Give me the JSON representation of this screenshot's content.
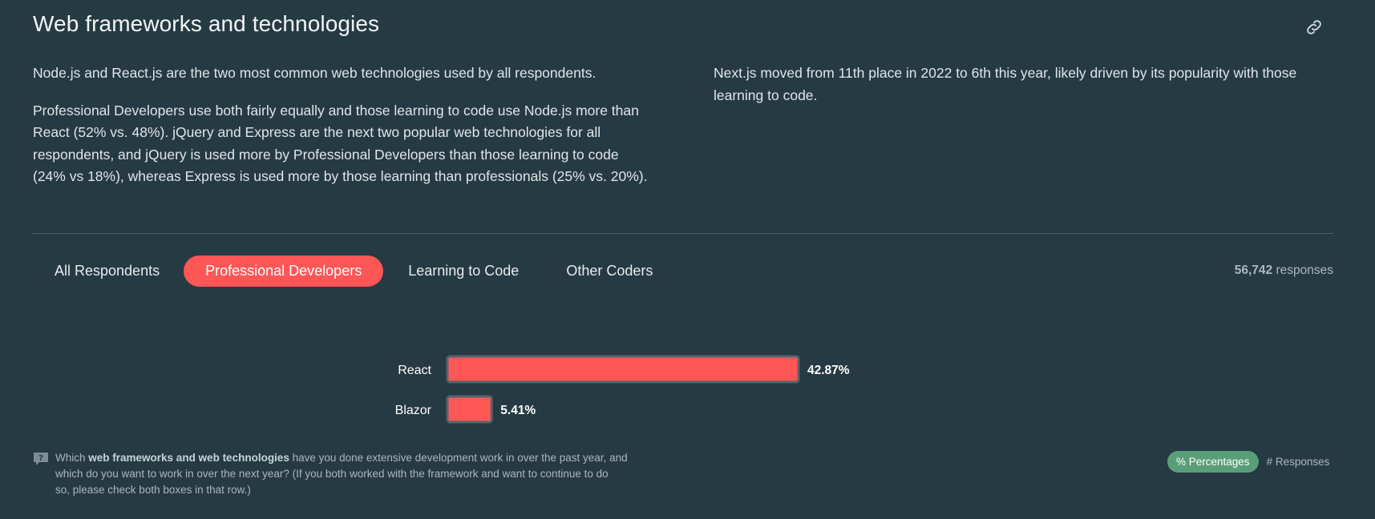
{
  "section": {
    "title": "Web frameworks and technologies",
    "link_icon": "link-icon"
  },
  "summary": {
    "left_p1": "Node.js and React.js are the two most common web technologies used by all respondents.",
    "left_p2_line1": "Professional Developers use both fairly equally and those learning to code use Node.js more than",
    "left_p2_line2": "React (52% vs. 48%). jQuery and Express are the next two popular web technologies for all",
    "left_p2_line3": "respondents, and jQuery is used more by Professional Developers than those learning to code",
    "left_p2_line4": "(24% vs 18%), whereas Express is used more by those learning than professionals (25% vs. 20%).",
    "right_line1": "Next.js moved from 11th place in 2022 to 6th this year, likely driven by its popularity with those",
    "right_line2": "learning to code."
  },
  "tabs": [
    {
      "label": "All Respondents",
      "active": false
    },
    {
      "label": "Professional Developers",
      "active": true
    },
    {
      "label": "Learning to Code",
      "active": false
    },
    {
      "label": "Other Coders",
      "active": false
    }
  ],
  "responses": {
    "count": "56,742",
    "label": "responses"
  },
  "chart_data": {
    "type": "bar",
    "orientation": "horizontal",
    "categories": [
      "React",
      "Blazor"
    ],
    "values": [
      42.87,
      5.41
    ],
    "value_labels": [
      "42.87%",
      "5.41%"
    ],
    "unit": "%",
    "bar_color": "#ff5656",
    "bar_border": "#55646b"
  },
  "question": {
    "icon": "question-icon",
    "prefix": "Which ",
    "bold": "web frameworks and web technologies",
    "rest_line1": " have you done extensive development work in over the past year, and",
    "line2": "which do you want to work in over the next year? (If you both worked with the framework and want to continue to do",
    "line3": "so, please check both boxes in that row.)"
  },
  "toggle": {
    "percentages_label": "% Percentages",
    "responses_label": "# Responses"
  },
  "colors": {
    "background": "#263a43",
    "accent": "#ff5656",
    "toggle_active": "#5a9e79"
  }
}
